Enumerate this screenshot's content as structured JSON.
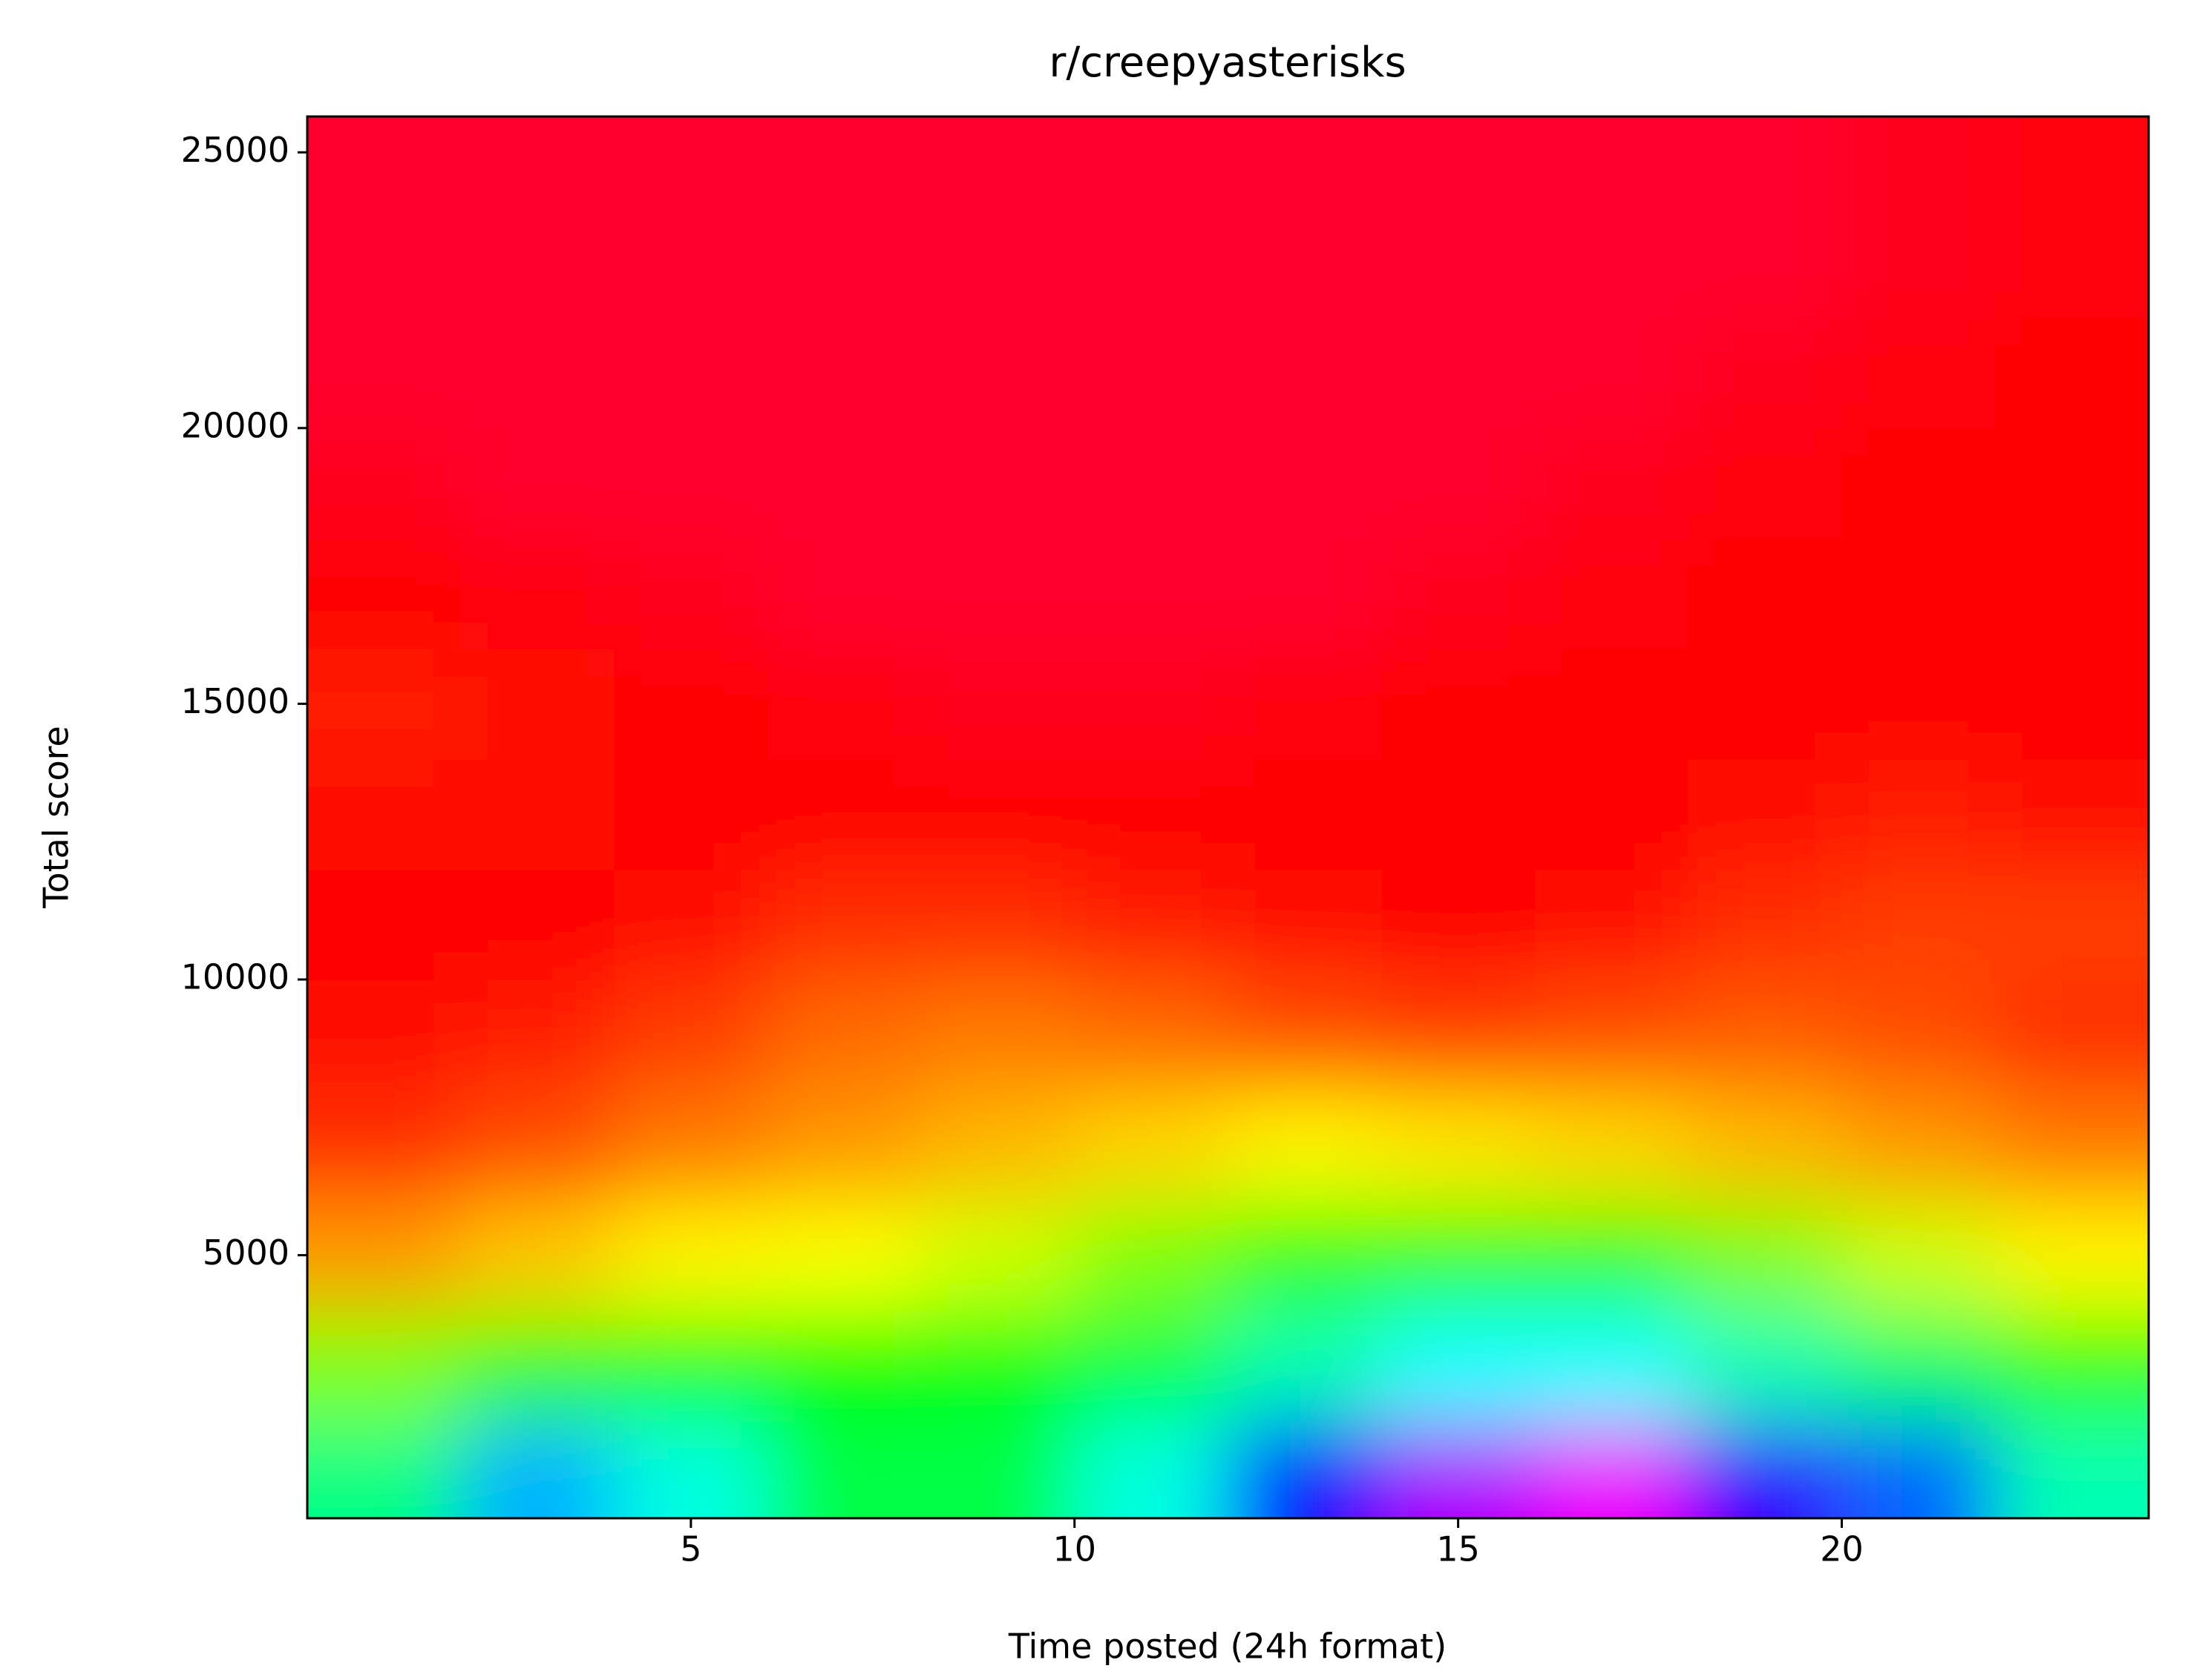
{
  "chart_data": {
    "type": "heatmap",
    "title": "r/creepyasterisks",
    "x_label": "Time posted (24h format)",
    "y_label": "Total score",
    "colormap": "hsv",
    "xlim": [
      0,
      24
    ],
    "ylim": [
      230,
      25650
    ],
    "xticks": [
      5,
      10,
      15,
      20
    ],
    "yticks": [
      5000,
      10000,
      15000,
      20000,
      25000
    ],
    "x": [
      1,
      3,
      5,
      7,
      9,
      11,
      13,
      15,
      17,
      19,
      21,
      23
    ],
    "y": [
      1000,
      3000,
      5000,
      7000,
      9000,
      11000,
      13000,
      15000,
      17000,
      19000,
      21000,
      23000,
      25000
    ],
    "z": [
      [
        0.42,
        0.55,
        0.48,
        0.38,
        0.38,
        0.48,
        0.65,
        0.78,
        0.82,
        0.7,
        0.6,
        0.45
      ],
      [
        0.25,
        0.3,
        0.32,
        0.33,
        0.35,
        0.38,
        0.45,
        0.5,
        0.5,
        0.45,
        0.4,
        0.3
      ],
      [
        0.1,
        0.13,
        0.16,
        0.17,
        0.2,
        0.25,
        0.3,
        0.3,
        0.3,
        0.25,
        0.2,
        0.16
      ],
      [
        0.03,
        0.05,
        0.08,
        0.1,
        0.12,
        0.14,
        0.16,
        0.15,
        0.14,
        0.12,
        0.1,
        0.08
      ],
      [
        0.01,
        0.02,
        0.04,
        0.07,
        0.08,
        0.07,
        0.05,
        0.04,
        0.05,
        0.06,
        0.05,
        0.03
      ],
      [
        0.0,
        0.0,
        0.01,
        0.03,
        0.03,
        0.02,
        0.01,
        0.0,
        0.01,
        0.03,
        0.04,
        0.04
      ],
      [
        0.01,
        0.01,
        0.0,
        0.0,
        0.0,
        0.0,
        0.0,
        0.0,
        0.0,
        0.01,
        0.02,
        0.01
      ],
      [
        0.02,
        0.01,
        0.0,
        -0.01,
        -0.02,
        -0.02,
        -0.01,
        0.0,
        0.0,
        0.0,
        0.0,
        0.0
      ],
      [
        0.0,
        -0.01,
        -0.02,
        -0.03,
        -0.03,
        -0.03,
        -0.03,
        -0.02,
        -0.01,
        0.0,
        0.0,
        0.0
      ],
      [
        -0.02,
        -0.03,
        -0.03,
        -0.03,
        -0.03,
        -0.03,
        -0.03,
        -0.03,
        -0.02,
        -0.01,
        0.0,
        0.0
      ],
      [
        -0.03,
        -0.03,
        -0.03,
        -0.03,
        -0.03,
        -0.03,
        -0.03,
        -0.03,
        -0.03,
        -0.02,
        -0.01,
        0.0
      ],
      [
        -0.03,
        -0.03,
        -0.03,
        -0.03,
        -0.03,
        -0.03,
        -0.03,
        -0.03,
        -0.03,
        -0.03,
        -0.02,
        -0.01
      ],
      [
        -0.03,
        -0.03,
        -0.03,
        -0.03,
        -0.03,
        -0.03,
        -0.03,
        -0.03,
        -0.03,
        -0.03,
        -0.02,
        -0.01
      ]
    ]
  }
}
